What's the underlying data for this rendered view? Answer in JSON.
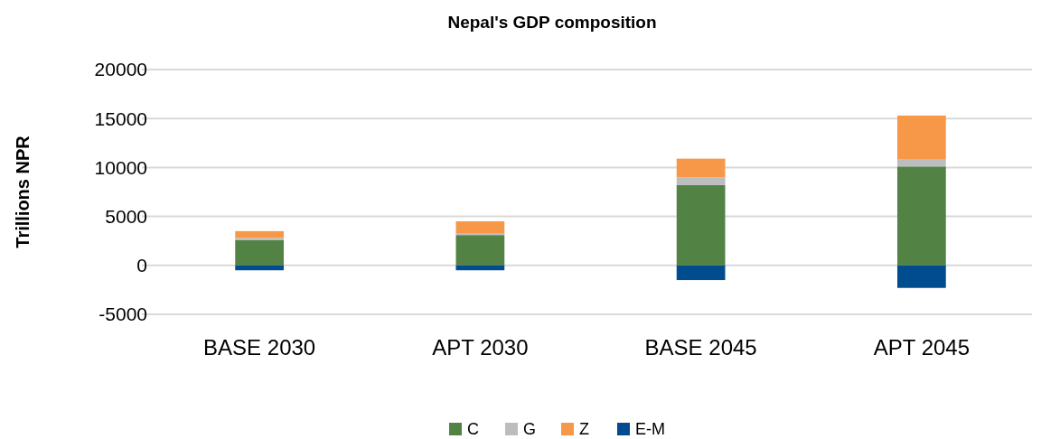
{
  "chart_data": {
    "type": "bar",
    "title": "Nepal's GDP composition",
    "ylabel": "Trillions NPR",
    "categories": [
      "BASE 2030",
      "APT 2030",
      "BASE 2045",
      "APT 2045"
    ],
    "stacked": true,
    "series": [
      {
        "name": "C",
        "color": "#538245",
        "values": [
          2600,
          3100,
          8200,
          10100
        ]
      },
      {
        "name": "G",
        "color": "#bcbdbf",
        "values": [
          200,
          200,
          800,
          700
        ]
      },
      {
        "name": "Z",
        "color": "#f79849",
        "values": [
          700,
          1200,
          1900,
          4500
        ]
      },
      {
        "name": "E-M",
        "color": "#004c8f",
        "values": [
          -500,
          -500,
          -1500,
          -2300
        ]
      }
    ],
    "ylim": [
      -5000,
      20000
    ],
    "yticks": [
      -5000,
      0,
      5000,
      10000,
      15000,
      20000
    ],
    "grid": "y",
    "legend": "bottom"
  }
}
